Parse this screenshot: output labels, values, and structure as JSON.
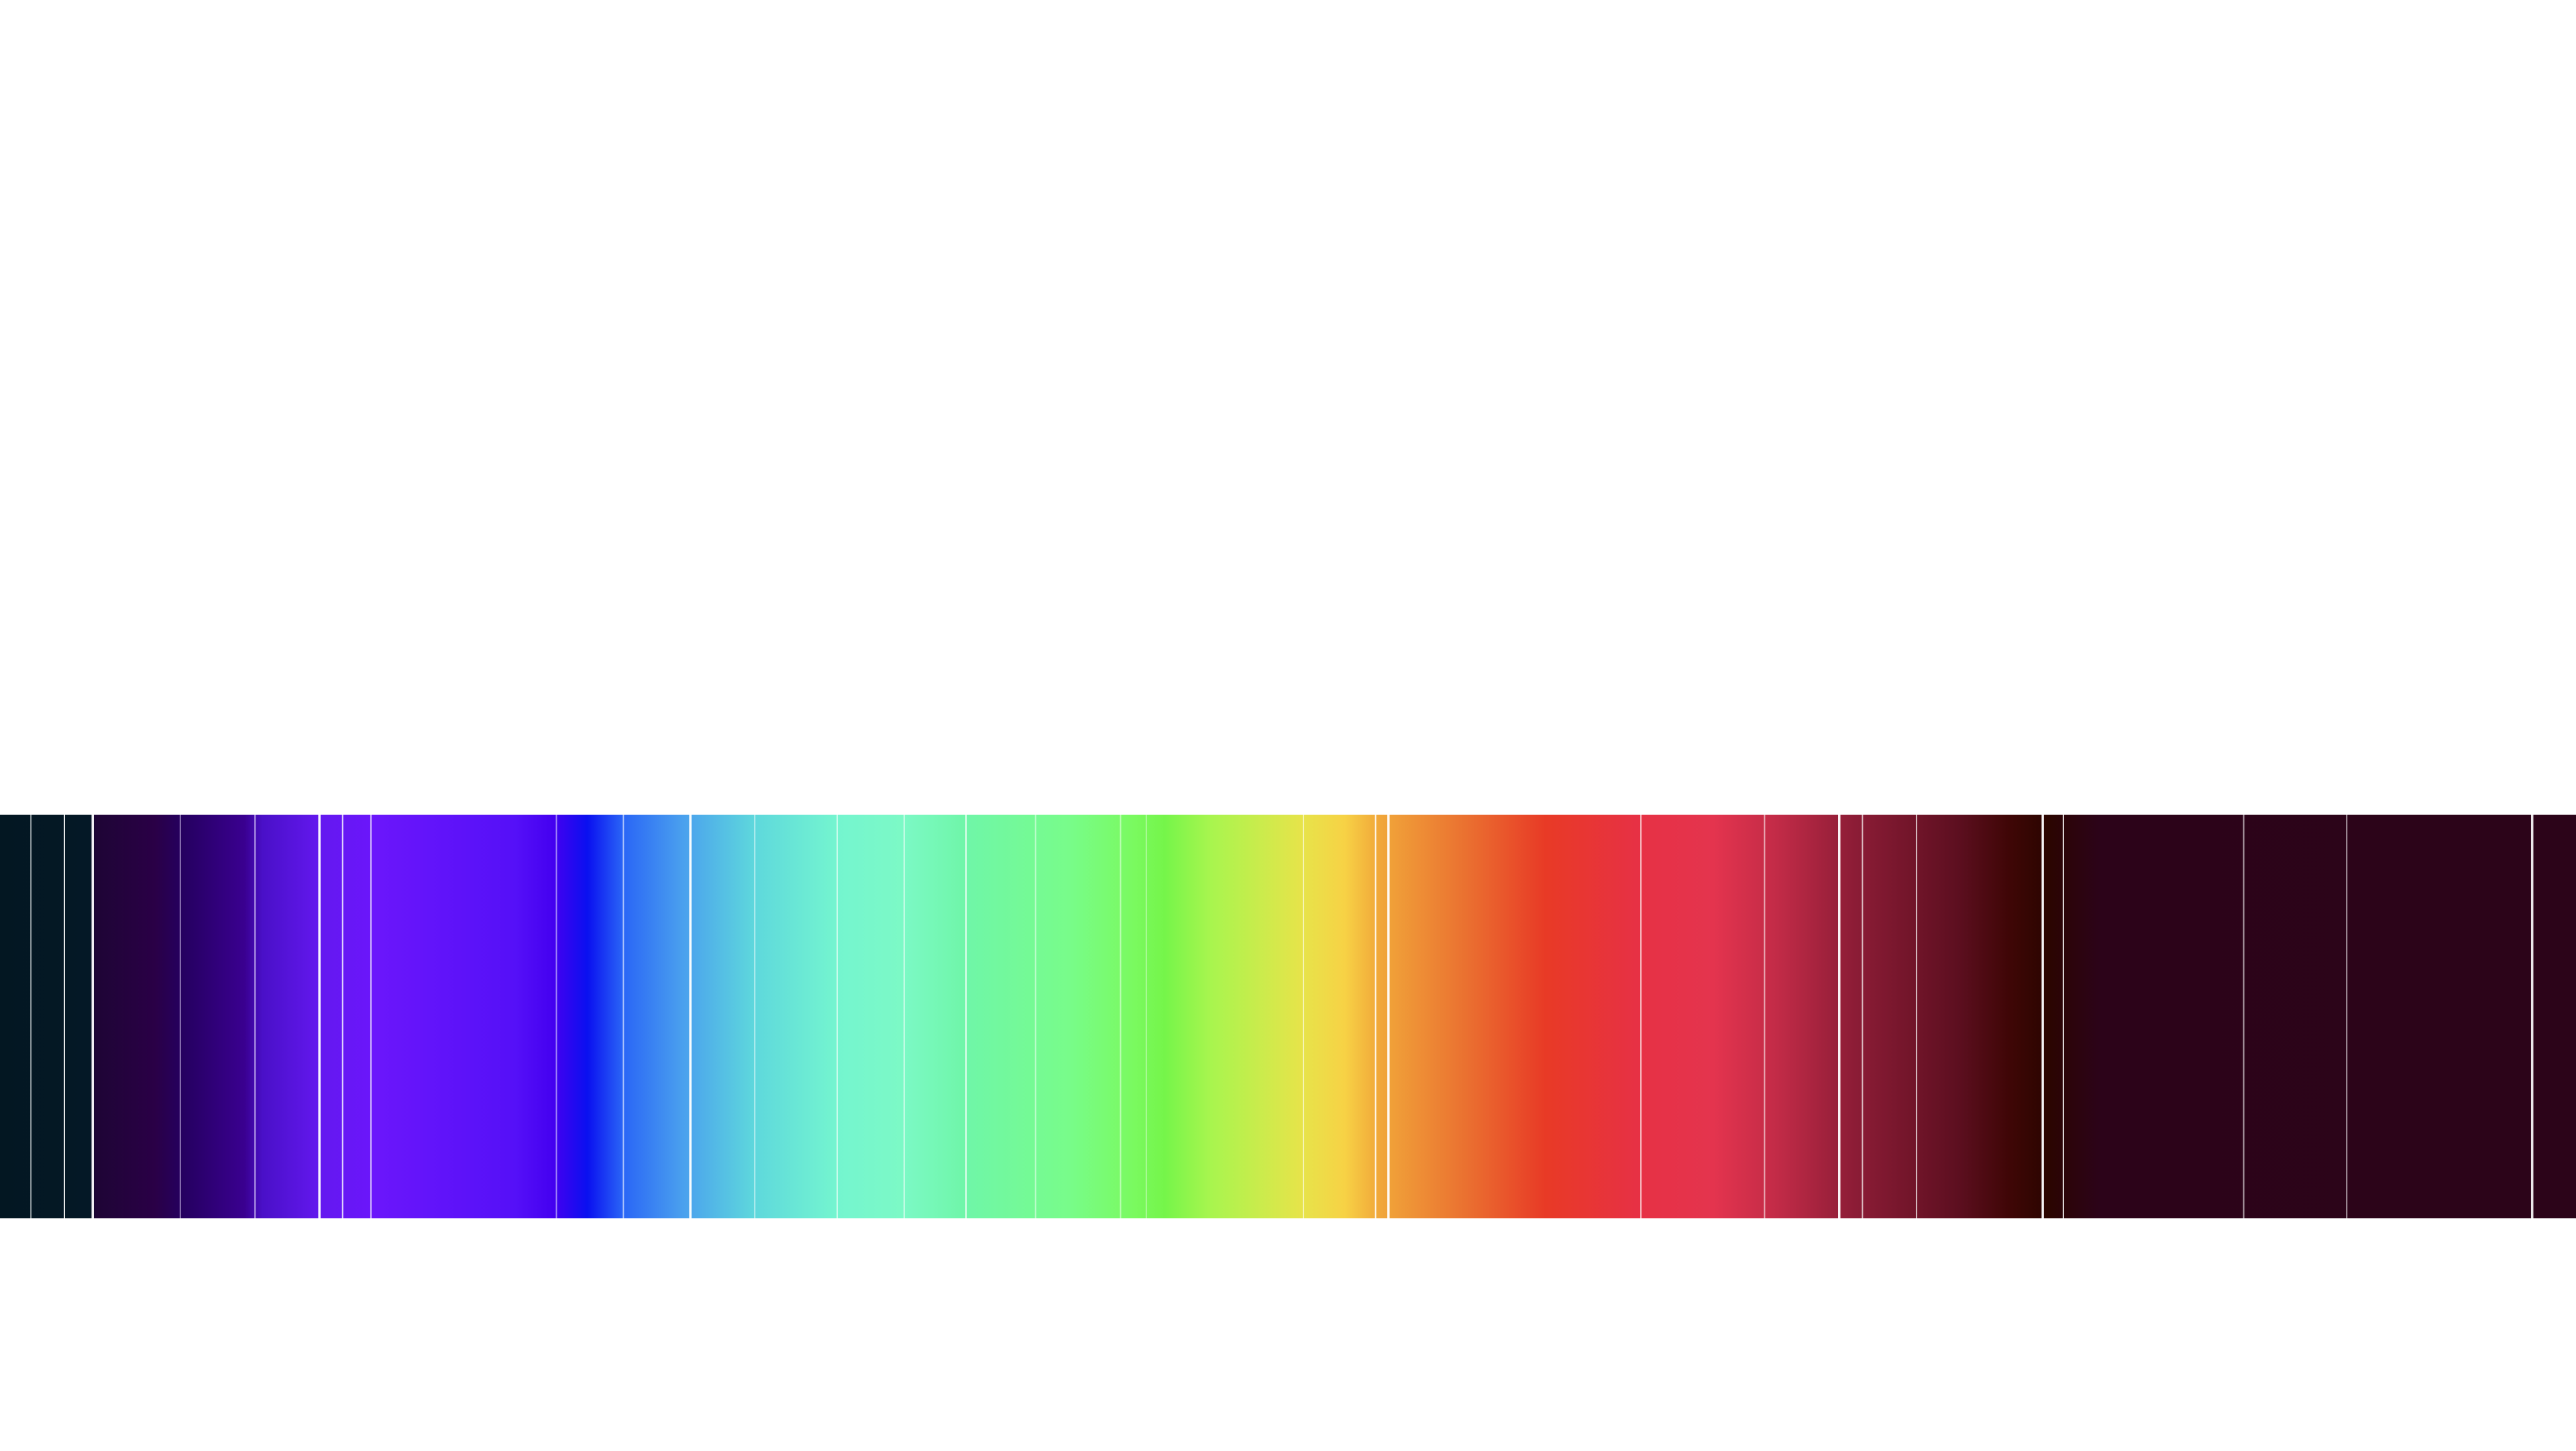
{
  "spectrum": {
    "gradient_stops": [
      {
        "offset": 0.0,
        "color": "#031722"
      },
      {
        "offset": 0.035,
        "color": "#041826"
      },
      {
        "offset": 0.037,
        "color": "#1e0535"
      },
      {
        "offset": 0.06,
        "color": "#2a0046"
      },
      {
        "offset": 0.071,
        "color": "#250060"
      },
      {
        "offset": 0.095,
        "color": "#3a0090"
      },
      {
        "offset": 0.102,
        "color": "#4a10c8"
      },
      {
        "offset": 0.125,
        "color": "#6418f0"
      },
      {
        "offset": 0.145,
        "color": "#6b16fb"
      },
      {
        "offset": 0.2,
        "color": "#5510f8"
      },
      {
        "offset": 0.215,
        "color": "#4400f0"
      },
      {
        "offset": 0.228,
        "color": "#0a10f0"
      },
      {
        "offset": 0.242,
        "color": "#2a66f6"
      },
      {
        "offset": 0.265,
        "color": "#4aa0ee"
      },
      {
        "offset": 0.293,
        "color": "#5ed8dc"
      },
      {
        "offset": 0.325,
        "color": "#74f5cf"
      },
      {
        "offset": 0.35,
        "color": "#7cf9c6"
      },
      {
        "offset": 0.375,
        "color": "#6ff6a8"
      },
      {
        "offset": 0.415,
        "color": "#78fc8a"
      },
      {
        "offset": 0.44,
        "color": "#7afa60"
      },
      {
        "offset": 0.452,
        "color": "#75f54a"
      },
      {
        "offset": 0.47,
        "color": "#a8f54e"
      },
      {
        "offset": 0.505,
        "color": "#e6e44a"
      },
      {
        "offset": 0.522,
        "color": "#f7d245"
      },
      {
        "offset": 0.535,
        "color": "#f1a83a"
      },
      {
        "offset": 0.57,
        "color": "#ea6f30"
      },
      {
        "offset": 0.6,
        "color": "#e83a26"
      },
      {
        "offset": 0.635,
        "color": "#e73144"
      },
      {
        "offset": 0.665,
        "color": "#e4344e"
      },
      {
        "offset": 0.69,
        "color": "#c22b47"
      },
      {
        "offset": 0.72,
        "color": "#8c1c36"
      },
      {
        "offset": 0.76,
        "color": "#5d0f20"
      },
      {
        "offset": 0.78,
        "color": "#3f0606"
      },
      {
        "offset": 0.795,
        "color": "#2b0500"
      },
      {
        "offset": 0.815,
        "color": "#2c0319"
      },
      {
        "offset": 1.0,
        "color": "#2c0419"
      }
    ],
    "lines": [
      {
        "x": 0.012,
        "color": "#cfd5d8",
        "opacity": 0.7,
        "weight": 1
      },
      {
        "x": 0.025,
        "color": "#ffffff",
        "opacity": 0.9,
        "weight": 1
      },
      {
        "x": 0.036,
        "color": "#ffffff",
        "opacity": 0.95,
        "weight": 2
      },
      {
        "x": 0.07,
        "color": "#d9c8f0",
        "opacity": 0.6,
        "weight": 1
      },
      {
        "x": 0.099,
        "color": "#e6dcff",
        "opacity": 0.7,
        "weight": 1
      },
      {
        "x": 0.124,
        "color": "#ffffff",
        "opacity": 0.95,
        "weight": 2
      },
      {
        "x": 0.133,
        "color": "#ffffff",
        "opacity": 0.8,
        "weight": 1
      },
      {
        "x": 0.144,
        "color": "#ffffff",
        "opacity": 0.7,
        "weight": 1
      },
      {
        "x": 0.216,
        "color": "#ffffff",
        "opacity": 0.5,
        "weight": 1
      },
      {
        "x": 0.242,
        "color": "#ffffff",
        "opacity": 0.6,
        "weight": 1
      },
      {
        "x": 0.268,
        "color": "#ffffff",
        "opacity": 0.95,
        "weight": 2
      },
      {
        "x": 0.293,
        "color": "#ffffff",
        "opacity": 0.5,
        "weight": 1
      },
      {
        "x": 0.325,
        "color": "#ffffff",
        "opacity": 0.6,
        "weight": 1
      },
      {
        "x": 0.351,
        "color": "#ffffff",
        "opacity": 0.6,
        "weight": 1
      },
      {
        "x": 0.375,
        "color": "#ffffff",
        "opacity": 0.8,
        "weight": 1
      },
      {
        "x": 0.402,
        "color": "#ffffff",
        "opacity": 0.5,
        "weight": 1
      },
      {
        "x": 0.435,
        "color": "#ffffff",
        "opacity": 0.5,
        "weight": 1
      },
      {
        "x": 0.445,
        "color": "#ffffff",
        "opacity": 0.4,
        "weight": 1
      },
      {
        "x": 0.506,
        "color": "#ffffff",
        "opacity": 0.6,
        "weight": 1
      },
      {
        "x": 0.534,
        "color": "#ffffff",
        "opacity": 0.9,
        "weight": 1
      },
      {
        "x": 0.539,
        "color": "#ffffff",
        "opacity": 0.95,
        "weight": 2
      },
      {
        "x": 0.637,
        "color": "#ffffff",
        "opacity": 0.7,
        "weight": 1
      },
      {
        "x": 0.685,
        "color": "#ffffff",
        "opacity": 0.6,
        "weight": 1
      },
      {
        "x": 0.714,
        "color": "#ffffff",
        "opacity": 0.95,
        "weight": 2
      },
      {
        "x": 0.723,
        "color": "#ffffff",
        "opacity": 0.7,
        "weight": 1
      },
      {
        "x": 0.744,
        "color": "#ffffff",
        "opacity": 0.7,
        "weight": 1
      },
      {
        "x": 0.793,
        "color": "#ffffff",
        "opacity": 0.95,
        "weight": 2
      },
      {
        "x": 0.801,
        "color": "#ffffff",
        "opacity": 0.9,
        "weight": 1
      },
      {
        "x": 0.871,
        "color": "#ffffff",
        "opacity": 0.6,
        "weight": 1
      },
      {
        "x": 0.911,
        "color": "#ffffff",
        "opacity": 0.6,
        "weight": 1
      },
      {
        "x": 0.983,
        "color": "#ffffff",
        "opacity": 0.9,
        "weight": 2
      }
    ]
  }
}
